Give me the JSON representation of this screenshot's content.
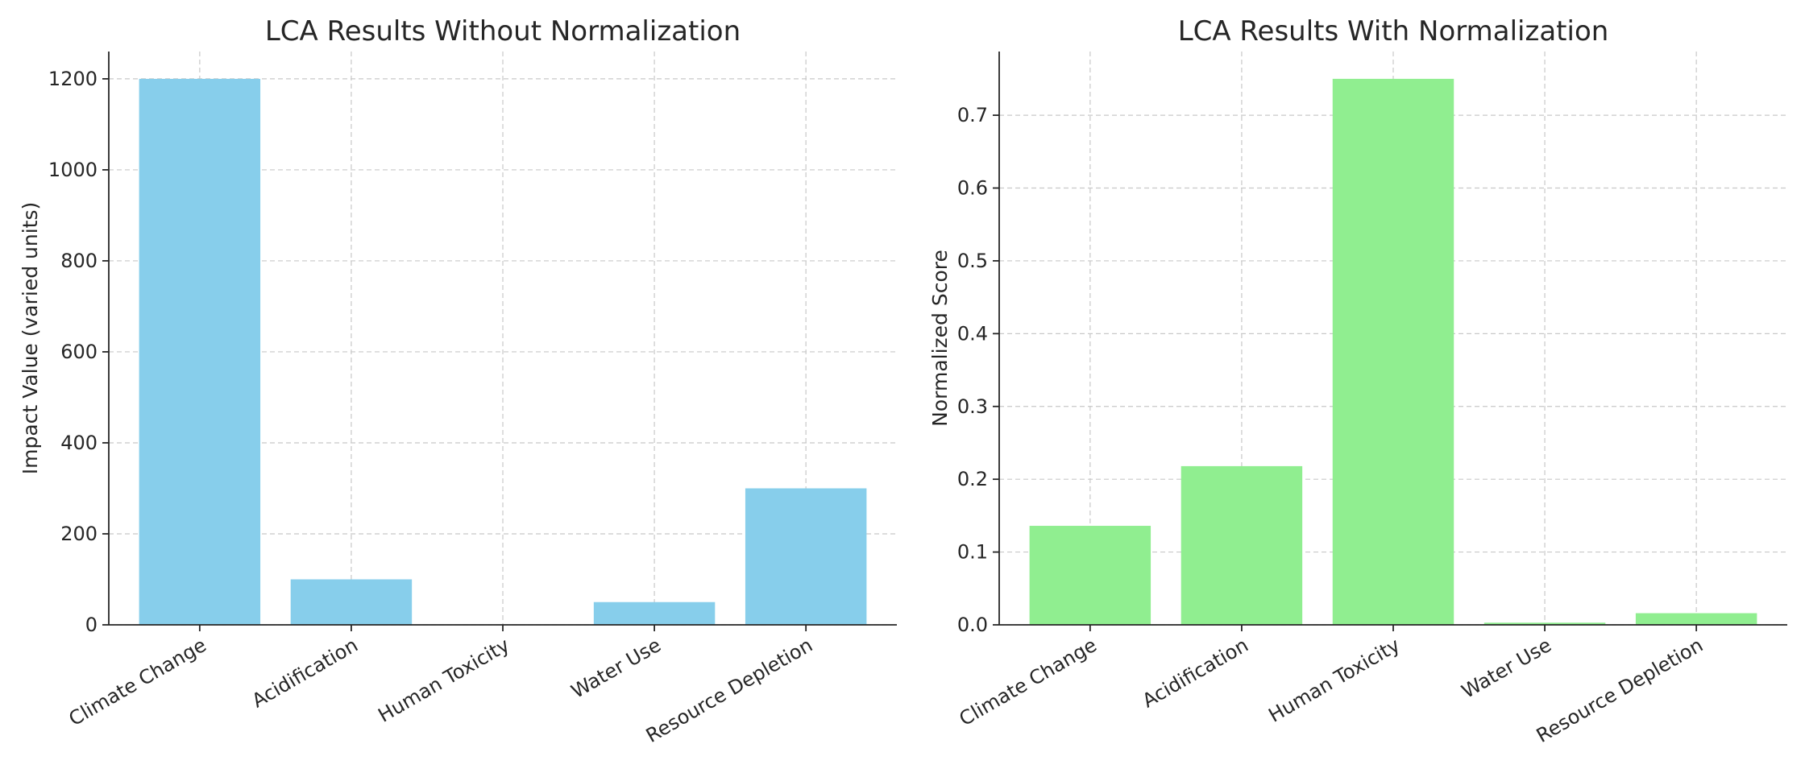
{
  "chart_data": [
    {
      "type": "bar",
      "title": "LCA Results Without Normalization",
      "xlabel": "",
      "ylabel": "Impact Value (varied units)",
      "categories": [
        "Climate Change",
        "Acidification",
        "Human Toxicity",
        "Water Use",
        "Resource Depletion"
      ],
      "values": [
        1200,
        100,
        0.5,
        50,
        300
      ],
      "ylim": [
        0,
        1260
      ],
      "yticks": [
        "0",
        "200",
        "400",
        "600",
        "800",
        "1000",
        "1200"
      ],
      "bar_color": "#87ceeb",
      "grid": true
    },
    {
      "type": "bar",
      "title": "LCA Results With Normalization",
      "xlabel": "",
      "ylabel": "Normalized Score",
      "categories": [
        "Climate Change",
        "Acidification",
        "Human Toxicity",
        "Water Use",
        "Resource Depletion"
      ],
      "values": [
        0.136,
        0.218,
        0.75,
        0.003,
        0.016
      ],
      "ylim": [
        0,
        0.7875
      ],
      "yticks": [
        "0.0",
        "0.1",
        "0.2",
        "0.3",
        "0.4",
        "0.5",
        "0.6",
        "0.7"
      ],
      "bar_color": "#90ee90",
      "grid": true
    }
  ]
}
